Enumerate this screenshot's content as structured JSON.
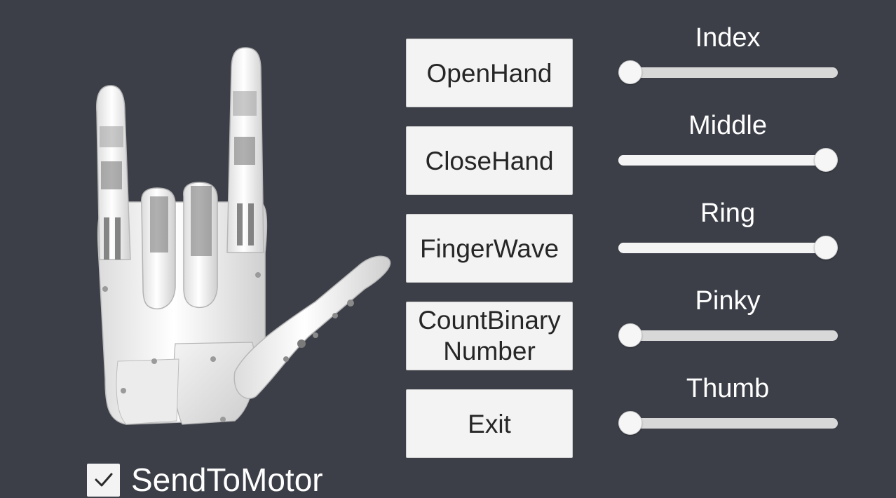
{
  "viewport": {
    "model_description": ""
  },
  "buttons": [
    {
      "label": "OpenHand"
    },
    {
      "label": "CloseHand"
    },
    {
      "label": "FingerWave"
    },
    {
      "label": "CountBinary\nNumber"
    },
    {
      "label": "Exit"
    }
  ],
  "sliders": [
    {
      "label": "Index",
      "value": 0.0
    },
    {
      "label": "Middle",
      "value": 1.0
    },
    {
      "label": "Ring",
      "value": 1.0
    },
    {
      "label": "Pinky",
      "value": 0.0
    },
    {
      "label": "Thumb",
      "value": 0.0
    }
  ],
  "send_to_motor": {
    "label": "SendToMotor",
    "checked": true,
    "check_icon": "checkmark-icon"
  },
  "colors": {
    "background": "#3c3f48",
    "button": "#f3f3f3",
    "text_dark": "#262626",
    "text_light": "#ffffff"
  }
}
